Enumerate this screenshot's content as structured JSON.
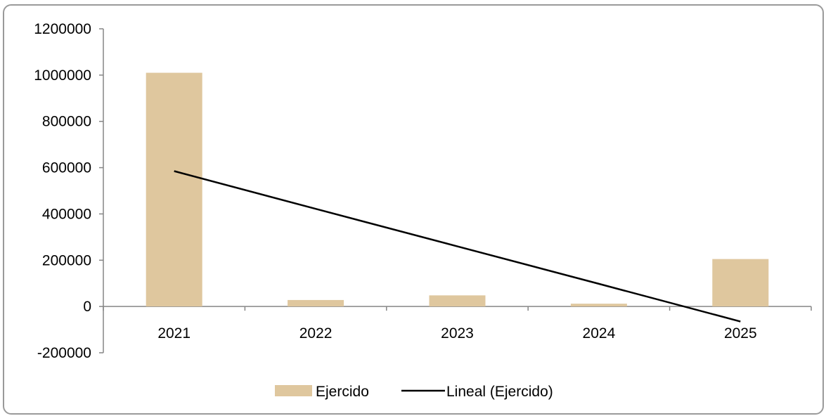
{
  "chart_data": {
    "type": "bar",
    "categories": [
      "2021",
      "2022",
      "2023",
      "2024",
      "2025"
    ],
    "series": [
      {
        "name": "Ejercido",
        "type": "bar",
        "color": "#dfc79e",
        "values": [
          1010000,
          28000,
          48000,
          12000,
          205000
        ]
      },
      {
        "name": "Lineal (Ejercido)",
        "type": "line",
        "color": "#000000",
        "values": [
          585000,
          422000,
          260000,
          98000,
          -65000
        ]
      }
    ],
    "y_ticks": [
      1200000,
      1000000,
      800000,
      600000,
      400000,
      200000,
      0,
      -200000
    ],
    "ylim": [
      -200000,
      1200000
    ],
    "title": "",
    "xlabel": "",
    "ylabel": "",
    "grid": false,
    "legend_position": "bottom"
  }
}
